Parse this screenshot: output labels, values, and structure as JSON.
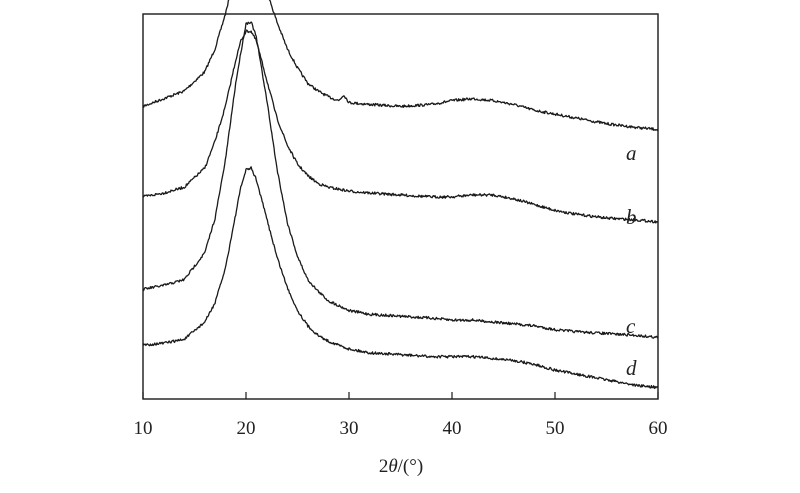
{
  "chart_data": {
    "type": "line",
    "xlabel_prefix": "2",
    "xlabel_symbol": "θ",
    "xlabel_suffix": "/(°)",
    "xlim": [
      10,
      60
    ],
    "xticks": [
      10,
      20,
      30,
      40,
      50,
      60
    ],
    "y_ticks_shown": false,
    "grid": false,
    "series": [
      {
        "name": "a",
        "x": [
          10,
          12,
          14,
          16,
          17,
          18,
          19,
          19.5,
          20,
          20.5,
          21,
          22,
          23,
          24,
          25,
          26,
          27,
          28,
          29,
          29.5,
          30,
          32,
          35,
          38,
          40,
          42,
          44,
          46,
          48,
          50,
          52,
          55,
          58,
          60
        ],
        "y": [
          0.76,
          0.78,
          0.8,
          0.85,
          0.91,
          1.0,
          1.11,
          1.15,
          1.17,
          1.16,
          1.14,
          1.06,
          0.98,
          0.91,
          0.86,
          0.82,
          0.8,
          0.785,
          0.775,
          0.79,
          0.77,
          0.765,
          0.76,
          0.765,
          0.775,
          0.78,
          0.775,
          0.765,
          0.75,
          0.74,
          0.73,
          0.715,
          0.705,
          0.7
        ]
      },
      {
        "name": "b",
        "x": [
          10,
          12,
          14,
          16,
          17,
          18,
          19,
          19.5,
          20,
          20.5,
          21,
          22,
          23,
          24,
          25,
          26,
          27,
          28,
          30,
          32,
          35,
          38,
          40,
          42,
          44,
          46,
          48,
          50,
          52,
          55,
          58,
          60
        ],
        "y": [
          0.525,
          0.535,
          0.55,
          0.6,
          0.67,
          0.76,
          0.88,
          0.93,
          0.955,
          0.955,
          0.93,
          0.83,
          0.73,
          0.66,
          0.61,
          0.58,
          0.56,
          0.55,
          0.54,
          0.535,
          0.53,
          0.525,
          0.525,
          0.53,
          0.53,
          0.52,
          0.505,
          0.49,
          0.48,
          0.47,
          0.465,
          0.46
        ]
      },
      {
        "name": "c",
        "x": [
          10,
          12,
          14,
          16,
          17,
          18,
          19,
          19.5,
          20,
          20.5,
          21,
          22,
          23,
          24,
          25,
          26,
          27,
          28,
          30,
          32,
          35,
          38,
          40,
          42,
          44,
          46,
          48,
          50,
          52,
          55,
          58,
          60
        ],
        "y": [
          0.285,
          0.295,
          0.31,
          0.38,
          0.47,
          0.62,
          0.82,
          0.9,
          0.975,
          0.98,
          0.94,
          0.78,
          0.6,
          0.46,
          0.37,
          0.31,
          0.28,
          0.255,
          0.23,
          0.22,
          0.215,
          0.21,
          0.205,
          0.205,
          0.2,
          0.195,
          0.19,
          0.18,
          0.175,
          0.17,
          0.165,
          0.16
        ]
      },
      {
        "name": "d",
        "x": [
          10,
          12,
          14,
          16,
          17,
          18,
          19,
          19.5,
          20,
          20.5,
          21,
          22,
          23,
          24,
          25,
          26,
          27,
          28,
          30,
          32,
          35,
          38,
          40,
          42,
          44,
          46,
          48,
          50,
          52,
          55,
          58,
          60
        ],
        "y": [
          0.14,
          0.145,
          0.155,
          0.2,
          0.25,
          0.34,
          0.48,
          0.55,
          0.595,
          0.6,
          0.57,
          0.47,
          0.37,
          0.29,
          0.23,
          0.19,
          0.165,
          0.15,
          0.13,
          0.12,
          0.115,
          0.11,
          0.11,
          0.11,
          0.105,
          0.1,
          0.09,
          0.075,
          0.065,
          0.05,
          0.035,
          0.03
        ]
      }
    ],
    "series_labels": [
      "a",
      "b",
      "c",
      "d"
    ],
    "colors": {
      "line": "#1a1a1a",
      "background": "#ffffff"
    }
  }
}
